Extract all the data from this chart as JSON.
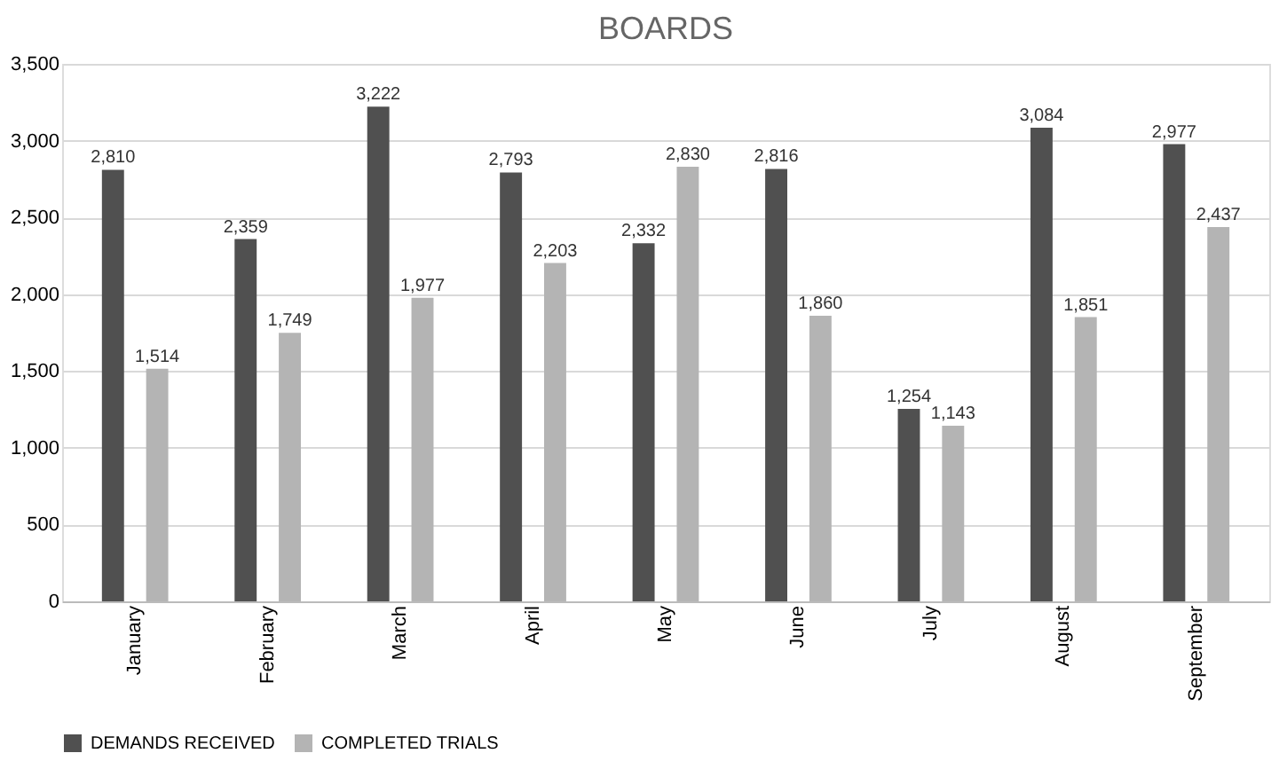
{
  "chart_data": {
    "type": "bar",
    "title": "BOARDS",
    "categories": [
      "January",
      "February",
      "March",
      "April",
      "May",
      "June",
      "July",
      "August",
      "September"
    ],
    "series": [
      {
        "name": "DEMANDS RECEIVED",
        "color": "#505050",
        "values": [
          2810,
          2359,
          3222,
          2793,
          2332,
          2816,
          1254,
          3084,
          2977
        ],
        "value_labels": [
          "2,810",
          "2,359",
          "3,222",
          "2,793",
          "2,332",
          "2,816",
          "1,254",
          "3,084",
          "2,977"
        ]
      },
      {
        "name": "COMPLETED TRIALS",
        "color": "#b4b4b4",
        "values": [
          1514,
          1749,
          1977,
          2203,
          2830,
          1860,
          1143,
          1851,
          2437
        ],
        "value_labels": [
          "1,514",
          "1,749",
          "1,977",
          "2,203",
          "2,830",
          "1,860",
          "1,143",
          "1,851",
          "2,437"
        ]
      }
    ],
    "ylim": [
      0,
      3500
    ],
    "yticks": [
      0,
      500,
      {
        "value": 1000,
        "label": "1,000"
      },
      {
        "value": 1500,
        "label": "1,500"
      },
      {
        "value": 2000,
        "label": "2,000"
      },
      {
        "value": 2500,
        "label": "2,500"
      },
      {
        "value": 3000,
        "label": "3,000"
      },
      {
        "value": 3500,
        "label": "3,500"
      }
    ],
    "grid": "y",
    "legend": "bottom"
  }
}
